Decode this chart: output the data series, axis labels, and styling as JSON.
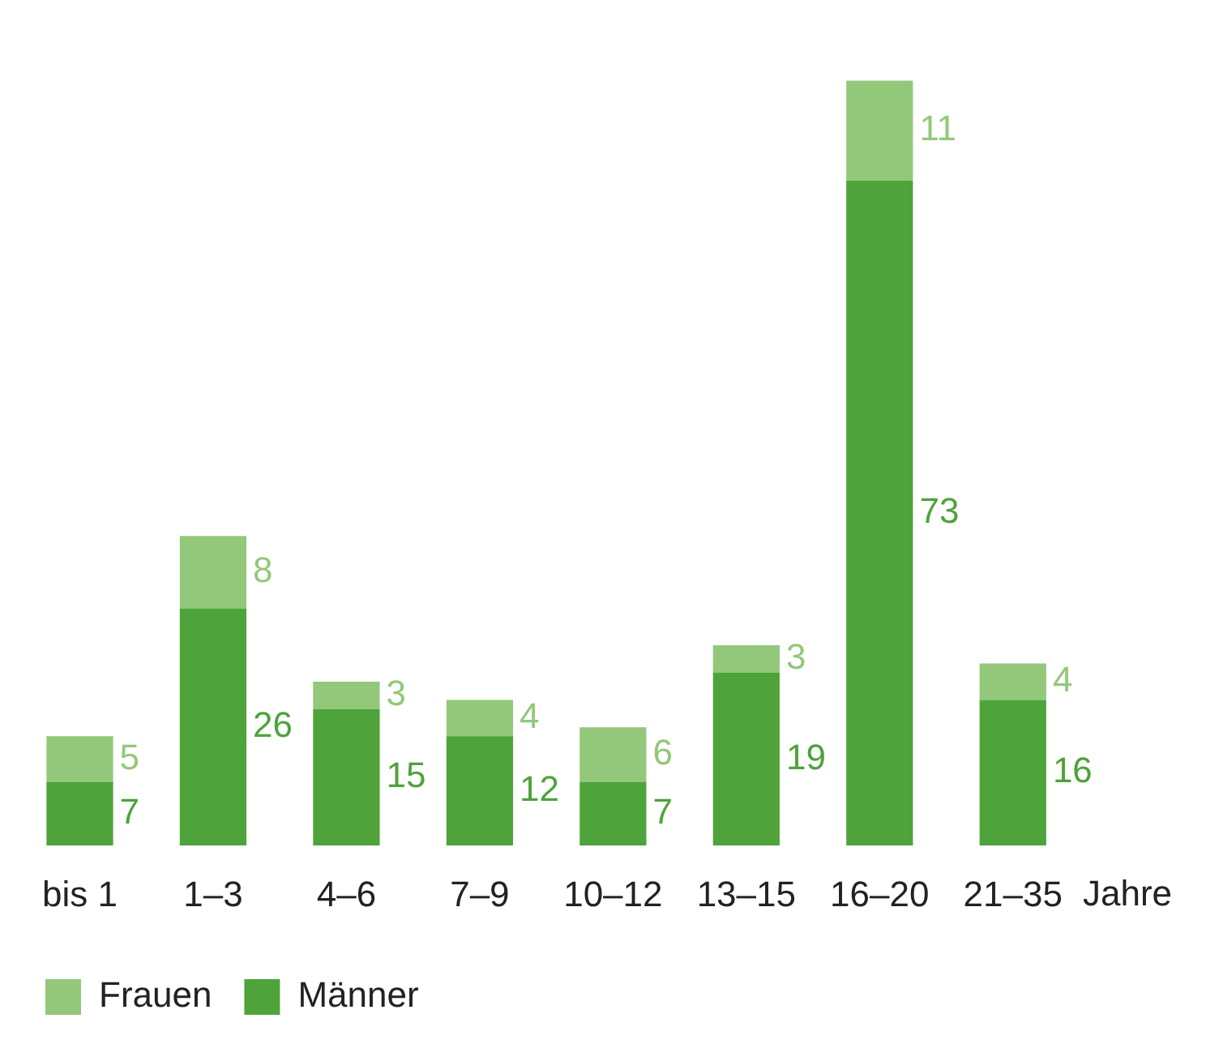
{
  "chart_data": {
    "type": "bar",
    "stacked": true,
    "data_labels": true,
    "legend": "bottom left",
    "grid": false,
    "xlabel": "Jahre",
    "categories": [
      "bis 1",
      "1–3",
      "4–6",
      "7–9",
      "10–12",
      "13–15",
      "16–20",
      "21–35"
    ],
    "series": [
      {
        "name": "Männer",
        "color": "#4ea33a",
        "values": [
          7,
          26,
          15,
          12,
          7,
          19,
          73,
          16
        ]
      },
      {
        "name": "Frauen",
        "color": "#93c87a",
        "values": [
          5,
          8,
          3,
          4,
          6,
          3,
          11,
          4
        ]
      }
    ]
  }
}
